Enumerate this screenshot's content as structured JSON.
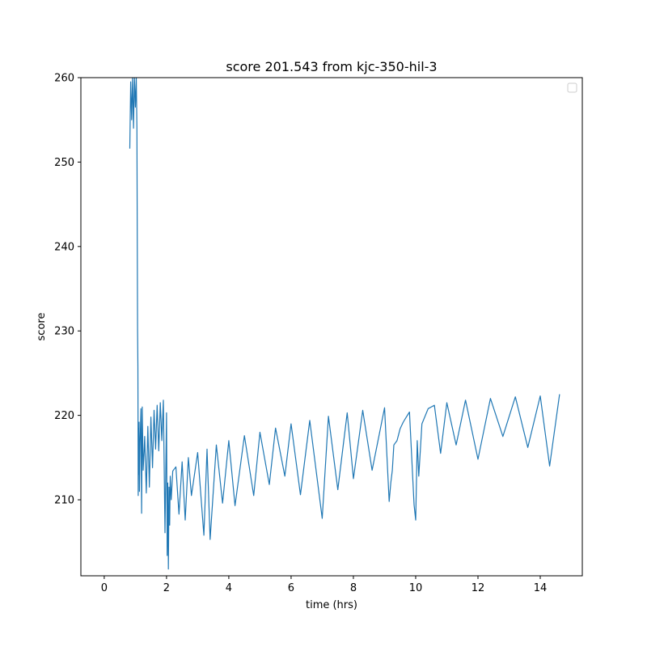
{
  "colors": {
    "series": "#1f77b4",
    "axes": "#000000",
    "background": "#ffffff"
  },
  "chart_data": {
    "type": "line",
    "title": "score  201.543 from kjc-350-hil-3",
    "xlabel": "time (hrs)",
    "ylabel": "score",
    "xlim": [
      -0.75,
      15.35
    ],
    "ylim": [
      201,
      260
    ],
    "xticks": [
      0,
      2,
      4,
      6,
      8,
      10,
      12,
      14
    ],
    "yticks": [
      210,
      220,
      230,
      240,
      250,
      260
    ],
    "grid": false,
    "legend": {
      "location": "top-right",
      "entries": []
    },
    "series": [
      {
        "values_note_x_hrs_y_score": true,
        "x": [
          0.82,
          0.85,
          0.88,
          0.91,
          0.94,
          0.97,
          1.0,
          1.03,
          1.05,
          1.07,
          1.08,
          1.09,
          1.1,
          1.11,
          1.12,
          1.13,
          1.15,
          1.18,
          1.2,
          1.22,
          1.25,
          1.28,
          1.3,
          1.35,
          1.4,
          1.45,
          1.5,
          1.55,
          1.6,
          1.65,
          1.7,
          1.75,
          1.8,
          1.85,
          1.9,
          1.95,
          2.0,
          2.02,
          2.04,
          2.06,
          2.08,
          2.1,
          2.12,
          2.15,
          2.2,
          2.3,
          2.4,
          2.5,
          2.6,
          2.7,
          2.8,
          3.0,
          3.2,
          3.3,
          3.4,
          3.6,
          3.8,
          4.0,
          4.2,
          4.5,
          4.8,
          5.0,
          5.3,
          5.5,
          5.8,
          6.0,
          6.3,
          6.6,
          7.0,
          7.2,
          7.5,
          7.8,
          8.0,
          8.3,
          8.6,
          9.0,
          9.15,
          9.2,
          9.25,
          9.3,
          9.4,
          9.5,
          9.6,
          9.7,
          9.8,
          9.95,
          10.0,
          10.05,
          10.1,
          10.2,
          10.4,
          10.6,
          10.8,
          11.0,
          11.3,
          11.6,
          12.0,
          12.4,
          12.8,
          13.2,
          13.6,
          14.0,
          14.3,
          14.62
        ],
        "y": [
          251.6,
          259.5,
          255.0,
          260.0,
          254.0,
          260.0,
          256.5,
          260.0,
          254.0,
          230.2,
          225.8,
          210.5,
          218.5,
          213.0,
          219.2,
          211.0,
          216.8,
          220.8,
          208.4,
          221.0,
          213.5,
          215.8,
          217.5,
          210.8,
          218.7,
          211.5,
          219.8,
          213.8,
          220.6,
          216.0,
          221.2,
          215.8,
          221.5,
          217.0,
          221.8,
          206.1,
          220.3,
          203.4,
          212.0,
          201.8,
          211.5,
          207.0,
          212.8,
          210.0,
          213.4,
          213.9,
          208.3,
          214.5,
          207.6,
          215.0,
          210.5,
          215.6,
          205.8,
          216.0,
          205.3,
          216.5,
          209.6,
          217.0,
          209.3,
          217.6,
          210.5,
          218.0,
          211.8,
          218.5,
          212.8,
          219.0,
          210.6,
          219.4,
          207.8,
          219.9,
          211.2,
          220.3,
          212.5,
          220.6,
          213.5,
          220.9,
          209.8,
          212.0,
          213.5,
          216.5,
          217.0,
          218.4,
          219.2,
          219.8,
          220.4,
          209.4,
          207.6,
          217.0,
          212.8,
          219.0,
          220.8,
          221.2,
          215.5,
          221.5,
          216.5,
          221.8,
          214.8,
          222.0,
          217.5,
          222.2,
          216.2,
          222.3,
          214.0,
          222.5
        ]
      }
    ]
  }
}
